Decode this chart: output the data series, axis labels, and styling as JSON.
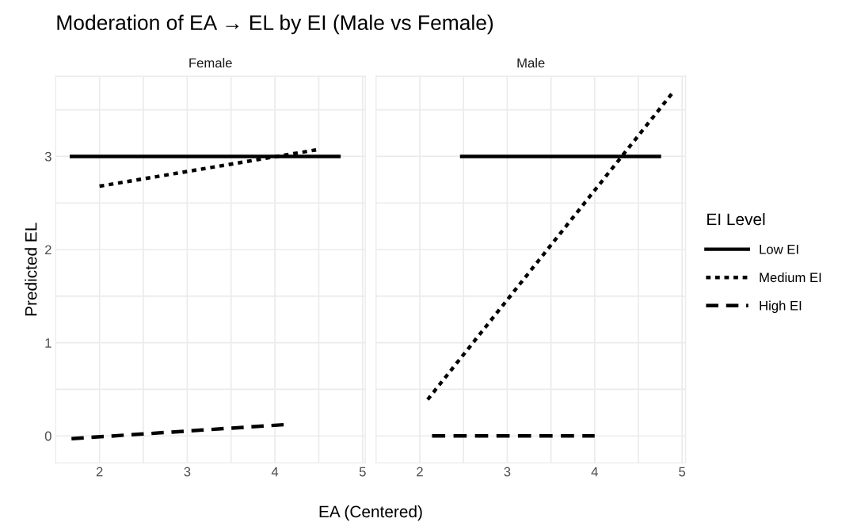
{
  "chart_data": [
    {
      "type": "line",
      "title": "Female",
      "annotations": [
        "Moderation of EA → EL by EI (Male vs Female)"
      ],
      "xlabel": "EA (Centered)",
      "ylabel": "Predicted EL",
      "xlim": [
        1.5,
        5.03
      ],
      "ylim": [
        -0.29,
        3.86
      ],
      "xticks": [
        2,
        {
          "value": 2.5,
          "label": null
        },
        3,
        {
          "value": 3.5,
          "label": null
        },
        4,
        {
          "value": 4.5,
          "label": null
        },
        5
      ],
      "yticks": [
        0,
        {
          "value": 0.5,
          "label": null
        },
        1,
        {
          "value": 1.5,
          "label": null
        },
        2,
        {
          "value": 2.5,
          "label": null
        },
        3,
        {
          "value": 3.5,
          "label": null
        }
      ],
      "grid": true,
      "legend": "right",
      "legend_title": "EI Level",
      "series": [
        {
          "name": "Low EI",
          "color": "#000000",
          "line_style": "solid",
          "x": [
            1.68,
            4.73
          ],
          "values": [
            3,
            3
          ]
        },
        {
          "name": "Medium EI",
          "color": "#000000",
          "line_style": "dotted",
          "x": [
            2.0,
            4.47
          ],
          "values": [
            2.68,
            3.07
          ]
        },
        {
          "name": "High EI",
          "color": "#000000",
          "line_style": "dashed",
          "x": [
            1.68,
            4.1
          ],
          "values": [
            -0.03,
            0.12
          ]
        }
      ]
    },
    {
      "type": "line",
      "title": "Male",
      "tick_labels": "x",
      "xlim": [
        1.5,
        5.04
      ],
      "ylim": [
        -0.29,
        3.86
      ],
      "xticks": [
        2,
        {
          "value": 2.5,
          "label": null
        },
        3,
        {
          "value": 3.5,
          "label": null
        },
        4,
        {
          "value": 4.5,
          "label": null
        },
        5
      ],
      "yticks": [
        0,
        {
          "value": 0.5,
          "label": null
        },
        1,
        {
          "value": 1.5,
          "label": null
        },
        2,
        {
          "value": 2.5,
          "label": null
        },
        3,
        {
          "value": 3.5,
          "label": null
        }
      ],
      "grid": true,
      "series": [
        {
          "color": "#000000",
          "line_style": "solid",
          "x": [
            2.48,
            4.74
          ],
          "values": [
            3,
            3
          ]
        },
        {
          "color": "#000000",
          "line_style": "dotted",
          "x": [
            2.09,
            4.88
          ],
          "values": [
            0.39,
            3.67
          ]
        },
        {
          "color": "#000000",
          "line_style": "dashed",
          "x": [
            2.14,
            4.0
          ],
          "values": [
            0,
            0
          ]
        }
      ]
    }
  ]
}
